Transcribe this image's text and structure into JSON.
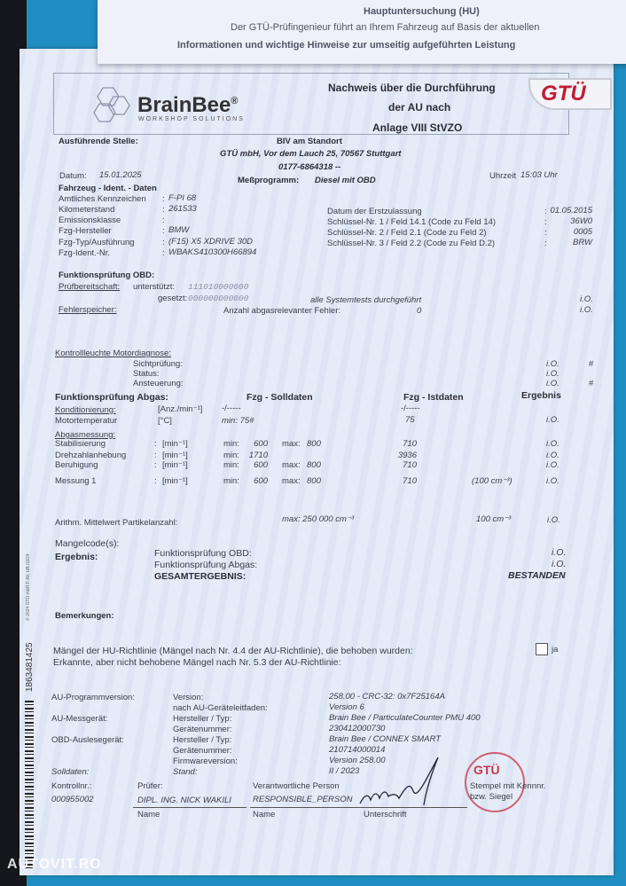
{
  "background_sheet": {
    "lines": [
      "Hauptuntersuchung (HU)",
      "Der GTÜ-Prüfingenieur führt an Ihrem Fahrzeug auf Basis der aktuellen",
      "Informationen und wichtige Hinweise zur umseitig aufgeführten Leistung"
    ]
  },
  "header": {
    "logo_name": "BrainBee",
    "logo_reg": "®",
    "logo_sub": "WORKSHOP SOLUTIONS",
    "title_lines": [
      "Nachweis über die Durchführung",
      "der AU nach",
      "Anlage VIII StVZO"
    ],
    "gtu_logo": "GTÜ"
  },
  "station": {
    "label": "Ausführende Stelle:",
    "lines": [
      "BIV am Standort",
      "GTÜ mbH, Vor dem Lauch 25, 70567 Stuttgart",
      "0177-6864318 --"
    ]
  },
  "meta": {
    "date_label": "Datum:",
    "date": "15.01.2025",
    "program_label": "Meßprogramm:",
    "program": "Diesel mit OBD",
    "time_label": "Uhrzeit",
    "time": "15:03 Uhr"
  },
  "vehicle": {
    "title": "Fahrzeug - Ident. - Daten",
    "rows": [
      {
        "label": "Amtliches Kennzeichen",
        "value": "F-PI 68"
      },
      {
        "label": "Kilometerstand",
        "value": "261533"
      },
      {
        "label": "Emissionsklasse",
        "value": ""
      },
      {
        "label": "Fzg-Hersteller",
        "value": "BMW"
      },
      {
        "label": "Fzg-Typ/Ausführung",
        "value": "(F15) X5 XDRIVE 30D"
      },
      {
        "label": "Fzg-Ident.-Nr.",
        "value": "WBAKS410300H66894"
      }
    ],
    "right_rows": [
      {
        "label": "Datum der Erstzulassung",
        "value": "01.05.2015"
      },
      {
        "label": "Schlüssel-Nr. 1 /  Feld 14.1 (Code zu Feld 14)",
        "value": "36W0"
      },
      {
        "label": "Schlüssel-Nr. 2 /  Feld 2.1 (Code zu Feld 2)",
        "value": "0005"
      },
      {
        "label": "Schlüssel-Nr. 3 /  Feld 2.2 (Code zu Feld D.2)",
        "value": "BRW"
      }
    ]
  },
  "obd": {
    "title": "Funktionsprüfung OBD:",
    "readiness_label": "Prüfbereitschaft:",
    "supported_label": "unterstützt:",
    "supported": "111010000000",
    "set_label": "gesetzt:",
    "set": "000000000000",
    "systemtests": "alle Systemtests durchgeführt",
    "systemtests_result": "i.O.",
    "memory_label": "Fehlerspeicher:",
    "errors_label": "Anzahl abgasrelevanter Fehler:",
    "errors": "0",
    "memory_result": "i.O."
  },
  "mil": {
    "title": "Kontrollleuchte Motordiagnose:",
    "rows": [
      {
        "label": "Sichtprüfung:",
        "result": "i.O.",
        "mark": "#"
      },
      {
        "label": "Status:",
        "result": "i.O.",
        "mark": ""
      },
      {
        "label": "Ansteuerung:",
        "result": "i.O.",
        "mark": "#"
      }
    ]
  },
  "exhaust": {
    "title": "Funktionsprüfung Abgas:",
    "col_target": "Fzg - Solldaten",
    "col_actual": "Fzg - Istdaten",
    "col_result": "Ergebnis",
    "conditioning_label": "Konditionierung:",
    "conditioning_unit": "[Anz./min⁻¹]",
    "conditioning_target": "-/-----",
    "conditioning_actual": "-/-----",
    "temp_label": "Motortemperatur",
    "temp_unit": "[°C]",
    "temp_target": "min: 75#",
    "temp_actual": "75",
    "temp_result": "i.O.",
    "measure_title": "Abgasmessung:",
    "rows": [
      {
        "label": "Stabilisierung",
        "unit": "[min⁻¹]",
        "min_label": "min:",
        "min": "600",
        "max_label": "max:",
        "max": "800",
        "actual": "710",
        "extra": "",
        "result": "i.O."
      },
      {
        "label": "Drehzahlanhebung",
        "unit": "[min⁻¹]",
        "min_label": "min:",
        "min": "1710",
        "max_label": "",
        "max": "",
        "actual": "3936",
        "extra": "",
        "result": "i.O."
      },
      {
        "label": "Beruhigung",
        "unit": "[min⁻¹]",
        "min_label": "min:",
        "min": "600",
        "max_label": "max:",
        "max": "800",
        "actual": "710",
        "extra": "",
        "result": "i.O."
      },
      {
        "label": "Messung 1",
        "unit": "[min⁻¹]",
        "min_label": "min:",
        "min": "600",
        "max_label": "max:",
        "max": "800",
        "actual": "710",
        "extra": "(100 cm⁻³)",
        "result": "i.O."
      }
    ],
    "particle_label": "Arithm. Mittelwert Partikelanzahl:",
    "particle_target": "max: 250 000 cm⁻³",
    "particle_actual": "100 cm⁻³",
    "particle_result": "i.O."
  },
  "result": {
    "defect_codes_label": "Mangelcode(s):",
    "label": "Ergebnis:",
    "obd_label": "Funktionsprüfung OBD:",
    "obd": "i.O.",
    "exhaust_label": "Funktionsprüfung Abgas:",
    "exhaust": "i.O.",
    "total_label": "GESAMTERGEBNIS:",
    "total": "BESTANDEN"
  },
  "remarks": {
    "label": "Bemerkungen:",
    "fixed_defects": "Mängel der HU-Richtlinie (Mängel nach Nr. 4.4 der AU-Richtlinie), die behoben wurden:",
    "fixed_checkbox_label": "ja",
    "fixed_checked": false,
    "unfixed_defects": "Erkannte, aber nicht behobene Mängel nach Nr. 5.3 der AU-Richtlinie:"
  },
  "equipment": [
    {
      "group": "AU-Programmversion:",
      "label": "Version:",
      "value": "258.00  -  CRC-32: 0x7F25164A"
    },
    {
      "group": "",
      "label": "nach AU-Geräteleitfaden:",
      "value": "Version 6"
    },
    {
      "group": "AU-Messgerät:",
      "label": "Hersteller / Typ:",
      "value": "Brain Bee / ParticulateCounter PMU 400"
    },
    {
      "group": "",
      "label": "Gerätenummer:",
      "value": "230412000730"
    },
    {
      "group": "OBD-Auslesegerät:",
      "label": "Hersteller / Typ:",
      "value": "Brain Bee / CONNEX SMART"
    },
    {
      "group": "",
      "label": "Gerätenummer:",
      "value": "210714000014"
    },
    {
      "group": "",
      "label": "Firmwareversion:",
      "value": "Version 258.00"
    },
    {
      "group": "Solldaten:",
      "label": "Stand:",
      "value": "II / 2023"
    }
  ],
  "signatures": {
    "control_label": "Kontrollnr.:",
    "control_no": "000955002",
    "inspector_label": "Prüfer:",
    "inspector": "DIPL. ING. NICK WAKILI",
    "inspector_name_label": "Name",
    "responsible_label": "Verantwortliche Person",
    "responsible": "RESPONSIBLE_PERSON",
    "responsible_name_label": "Name",
    "signature_label": "Unterschrift",
    "stamp_label_1": "Stempel mit Kennnr.",
    "stamp_label_2": "bzw. Siegel",
    "stamp_text": "GTÜ"
  },
  "side": {
    "serial": "1863481425",
    "copyright": "© 2024 GTÜ mbH F.-Nr. UB 03/24"
  },
  "watermark": "AUTOVIT.RO",
  "colors": {
    "paper": "#e6ecf7",
    "background_blue": "#1f8ec2",
    "gtu_red": "#c41a34"
  }
}
